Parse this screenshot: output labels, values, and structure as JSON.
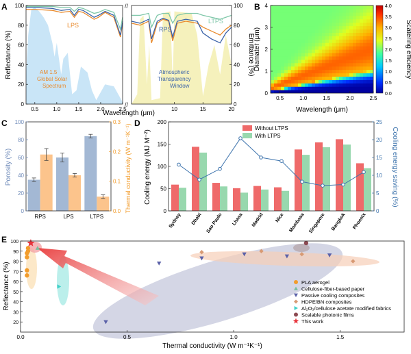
{
  "chart_data": [
    {
      "panel": "A",
      "type": "line",
      "xlabel": "Wavelength (μm)",
      "ylabel_left": "Reflectance (%)",
      "ylabel_right": "Emittance (%)",
      "ylim": [
        0,
        100
      ],
      "x_ticks_left": [
        "0.5",
        "1.0",
        "1.5",
        "2.0",
        "2.5"
      ],
      "x_ticks_right": [
        "10",
        "15",
        "20"
      ],
      "y_ticks": [
        "0",
        "20",
        "40",
        "60",
        "80",
        "100"
      ],
      "annotations": [
        "LPS",
        "RPS",
        "LTPS",
        "AM 1.5",
        "Global Solar",
        "Spectrum",
        "Atmospheric",
        "Transparency",
        "Window"
      ],
      "series": [
        {
          "name": "LPS",
          "color": "#e98a2c",
          "x_left": [
            0.3,
            0.5,
            0.9,
            1.1,
            1.3,
            1.4,
            1.5,
            1.6,
            1.85,
            1.95,
            2.1,
            2.3,
            2.45,
            2.5
          ],
          "y_left": [
            96,
            96,
            95,
            93,
            94,
            88,
            94,
            93,
            86,
            88,
            93,
            88,
            68,
            82
          ],
          "x_right": [
            2.5,
            4,
            5.5,
            6,
            7,
            8,
            9,
            9.7,
            10.5,
            12,
            14,
            15,
            16.5,
            18,
            19,
            20
          ],
          "y_right": [
            82,
            80,
            84,
            62,
            82,
            86,
            84,
            64,
            82,
            84,
            82,
            78,
            74,
            70,
            76,
            80
          ]
        },
        {
          "name": "RPS",
          "color": "#3b63a8",
          "x_left": [
            0.3,
            0.5,
            0.9,
            1.1,
            1.3,
            1.4,
            1.5,
            1.6,
            1.85,
            1.95,
            2.1,
            2.3,
            2.45,
            2.5
          ],
          "y_left": [
            98,
            98,
            97,
            95,
            96,
            90,
            96,
            95,
            88,
            90,
            94,
            90,
            70,
            84
          ],
          "x_right": [
            2.5,
            4,
            5.5,
            6,
            7,
            8,
            9,
            9.7,
            10.5,
            12,
            14,
            15,
            16.5,
            18,
            19,
            20
          ],
          "y_right": [
            84,
            82,
            86,
            66,
            84,
            87,
            85,
            68,
            84,
            86,
            84,
            72,
            66,
            62,
            72,
            78
          ]
        },
        {
          "name": "LTPS",
          "color": "#7fc7a9",
          "x_left": [
            0.3,
            0.5,
            0.9,
            1.1,
            1.3,
            1.4,
            1.5,
            1.6,
            1.85,
            1.95,
            2.1,
            2.3,
            2.45,
            2.5
          ],
          "y_left": [
            99,
            99,
            99,
            98,
            98,
            94,
            98,
            97,
            92,
            93,
            96,
            93,
            76,
            88
          ],
          "x_right": [
            2.5,
            4,
            5.5,
            6,
            7,
            8,
            9,
            9.7,
            10.5,
            12,
            14,
            15,
            16.5,
            18,
            19,
            20
          ],
          "y_right": [
            90,
            90,
            92,
            78,
            90,
            92,
            92,
            82,
            90,
            92,
            92,
            90,
            88,
            86,
            88,
            90
          ]
        }
      ]
    },
    {
      "panel": "B",
      "type": "heatmap",
      "xlabel": "Wavelength (μm)",
      "ylabel": "Diamater (μm)",
      "colorbar_label": "Scatering efficiency",
      "xlim": [
        0.3,
        2.5
      ],
      "ylim": [
        0,
        4
      ],
      "x_ticks": [
        "0.5",
        "1.0",
        "1.5",
        "2.0",
        "2.5"
      ],
      "y_ticks": [
        "0",
        "1",
        "2",
        "3",
        "4"
      ],
      "colorbar_ticks": [
        "0.0",
        "0.5",
        "1.0",
        "1.5",
        "2.0",
        "2.5",
        "3.0",
        "3.5",
        "4.0"
      ],
      "clim": [
        0,
        4
      ]
    },
    {
      "panel": "C",
      "type": "bar",
      "categories": [
        "RPS",
        "LPS",
        "LTPS"
      ],
      "ylabel_left": "Porosity (%)",
      "ylabel_right": "Thermal conductivity (W m⁻¹K⁻¹)",
      "ylim_left": [
        0,
        100
      ],
      "ylim_right": [
        0,
        0.3
      ],
      "y_ticks_left": [
        "0",
        "20",
        "40",
        "60",
        "80",
        "100"
      ],
      "y_ticks_right": [
        "0.0",
        "0.1",
        "0.2",
        "0.3"
      ],
      "series": [
        {
          "name": "Porosity",
          "color": "#a3b8d4",
          "axis": "left",
          "values": [
            35,
            60,
            84
          ],
          "errors": [
            2,
            5,
            2
          ]
        },
        {
          "name": "Thermal conductivity",
          "color": "#fcc48c",
          "axis": "right",
          "values": [
            0.19,
            0.12,
            0.048
          ],
          "errors": [
            0.02,
            0.006,
            0.006
          ]
        }
      ]
    },
    {
      "panel": "D",
      "type": "bar",
      "categories": [
        "Sydney",
        "Dhabi",
        "Sao Paulo",
        "Lhasa",
        "Madrid",
        "Nice",
        "Mombasa",
        "Singapore",
        "Bangkok",
        "Phoenix"
      ],
      "ylabel_left": "Cooling energy (MJ M⁻²)",
      "ylabel_right": "Cooling energy saving (%)",
      "ylim_left": [
        0,
        200
      ],
      "ylim_right": [
        0,
        25
      ],
      "y_ticks_left": [
        "0",
        "50",
        "100",
        "150",
        "200"
      ],
      "y_ticks_right": [
        "0",
        "5",
        "10",
        "15",
        "20",
        "25"
      ],
      "series": [
        {
          "name": "Without LTPS",
          "color": "#ef6a6a",
          "axis": "left",
          "values": [
            59,
            144,
            63,
            51,
            56,
            53,
            138,
            154,
            161,
            107
          ]
        },
        {
          "name": "With LTPS",
          "color": "#98d8ae",
          "axis": "left",
          "values": [
            52,
            131,
            55,
            41,
            48,
            45,
            126,
            143,
            149,
            96
          ]
        },
        {
          "name": "Saving",
          "color": "#3e74ad",
          "axis": "right",
          "type": "line",
          "values": [
            13.0,
            8.8,
            11.8,
            20.4,
            15.0,
            14.0,
            8.2,
            7.1,
            7.4,
            10.9
          ]
        }
      ]
    },
    {
      "panel": "E",
      "type": "scatter",
      "xlabel": "Thermal conductivity (W m⁻¹K⁻¹)",
      "ylabel": "Reflectance (%)",
      "xlim": [
        0,
        1.8
      ],
      "ylim": [
        10,
        100
      ],
      "x_ticks": [
        "0.0",
        "0.5",
        "1.0",
        "1.5"
      ],
      "y_ticks": [
        "20",
        "30",
        "40",
        "50",
        "60",
        "70",
        "80",
        "90",
        "100"
      ],
      "series": [
        {
          "name": "PLA aerogel",
          "color": "#f29c2b",
          "marker": "circle",
          "points": [
            [
              0.03,
              66
            ],
            [
              0.03,
              71
            ],
            [
              0.03,
              84
            ],
            [
              0.03,
              88
            ],
            [
              0.035,
              90
            ],
            [
              0.035,
              93
            ]
          ]
        },
        {
          "name": "Cellulose-fiber-based paper",
          "color": "#7bbf9f",
          "marker": "triangle-up",
          "points": [
            [
              0.08,
              93
            ]
          ]
        },
        {
          "name": "Passive cooling composites",
          "color": "#5b61a8",
          "marker": "triangle-down",
          "points": [
            [
              0.4,
              20
            ],
            [
              0.65,
              78
            ],
            [
              0.85,
              83
            ],
            [
              1.05,
              87
            ],
            [
              1.25,
              85
            ],
            [
              1.45,
              86
            ]
          ]
        },
        {
          "name": "HDPE/BN composites",
          "color": "#d89a74",
          "marker": "diamond",
          "points": [
            [
              0.85,
              89
            ],
            [
              1.13,
              90
            ],
            [
              1.32,
              87
            ],
            [
              1.56,
              80
            ]
          ]
        },
        {
          "name": "Al₂O₃/cellulose acetate modified fabrics",
          "color": "#3fd0c8",
          "marker": "triangle-right",
          "points": [
            [
              0.18,
              55
            ]
          ]
        },
        {
          "name": "Scalable photonic films",
          "color": "#8c4a52",
          "marker": "circle",
          "points": [
            [
              1.34,
              98
            ]
          ]
        },
        {
          "name": "This work",
          "color": "#e8323a",
          "marker": "star",
          "points": [
            [
              0.048,
              98
            ]
          ]
        }
      ]
    }
  ],
  "panel_letters": [
    "A",
    "B",
    "C",
    "D",
    "E"
  ],
  "break_mark": "//"
}
